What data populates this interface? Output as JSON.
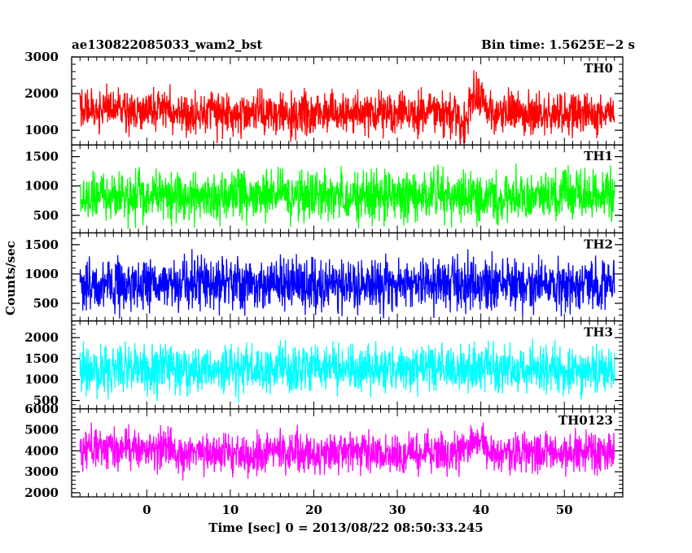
{
  "header": {
    "left_title": "ae130822085033_wam2_bst",
    "right_title": "Bin time: 1.5625E−2 s"
  },
  "axes": {
    "xlabel": "Time [sec] 0 = 2013/08/22 08:50:33.245",
    "ylabel": "Counts/sec"
  },
  "chart_data": {
    "type": "line",
    "x_range": [
      -8,
      56
    ],
    "xlim": [
      -9,
      57
    ],
    "x_ticks": [
      0,
      10,
      20,
      30,
      40,
      50
    ],
    "bin_time_s": 0.015625,
    "grid": false,
    "panels": [
      {
        "name": "TH0",
        "color": "#ff0000",
        "ylim": [
          600,
          3000
        ],
        "y_ticks": [
          1000,
          2000,
          3000
        ],
        "baseline": 1450,
        "noise": 420,
        "features": [
          {
            "x_start": -8,
            "x_end": 3,
            "level": 1550
          },
          {
            "x_start": 38.5,
            "x_end": 40.5,
            "level": 1900
          },
          {
            "x_start": 37.5,
            "x_end": 38.5,
            "level": 1150
          }
        ]
      },
      {
        "name": "TH1",
        "color": "#00ff00",
        "ylim": [
          200,
          1700
        ],
        "y_ticks": [
          500,
          1000,
          1500
        ],
        "baseline": 830,
        "noise": 310,
        "features": []
      },
      {
        "name": "TH2",
        "color": "#0000ff",
        "ylim": [
          200,
          1700
        ],
        "y_ticks": [
          500,
          1000,
          1500
        ],
        "baseline": 830,
        "noise": 320,
        "features": []
      },
      {
        "name": "TH3",
        "color": "#00ffff",
        "ylim": [
          300,
          2400
        ],
        "y_ticks": [
          500,
          1000,
          1500,
          2000
        ],
        "baseline": 1250,
        "noise": 420,
        "features": []
      },
      {
        "name": "TH0123",
        "color": "#ff00ff",
        "ylim": [
          1800,
          6000
        ],
        "y_ticks": [
          2000,
          3000,
          4000,
          5000,
          6000
        ],
        "baseline": 3900,
        "noise": 700,
        "features": [
          {
            "x_start": -8,
            "x_end": 3,
            "level": 4100
          },
          {
            "x_start": 38.5,
            "x_end": 40.5,
            "level": 4500
          }
        ]
      }
    ]
  }
}
